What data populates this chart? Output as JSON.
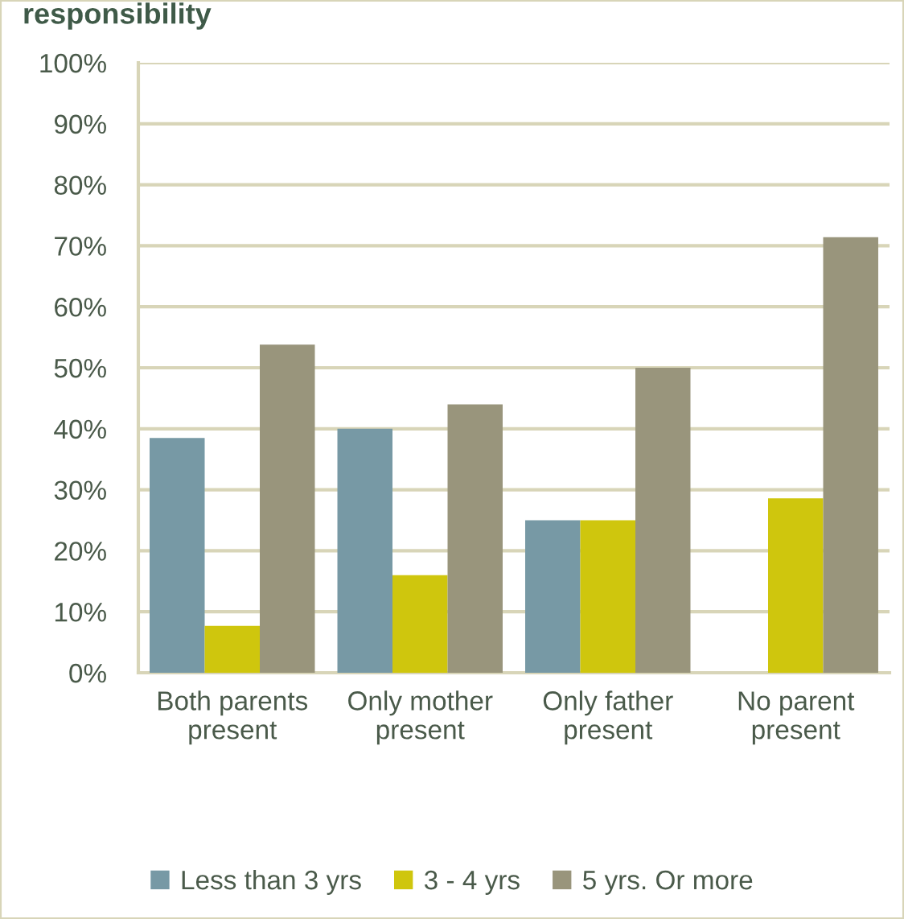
{
  "chart_data": {
    "type": "bar",
    "title": "responsibility",
    "categories": [
      "Both parents present",
      "Only mother present",
      "Only father present",
      "No parent present"
    ],
    "series": [
      {
        "name": "Less than 3 yrs",
        "color": "#7799a5",
        "values": [
          38.5,
          40,
          25,
          0
        ]
      },
      {
        "name": "3 - 4 yrs",
        "color": "#cfc60d",
        "values": [
          7.7,
          16,
          25,
          28.6
        ]
      },
      {
        "name": "5 yrs. Or more",
        "color": "#99957c",
        "values": [
          53.8,
          44,
          50,
          71.4
        ]
      }
    ],
    "ylim": [
      0,
      100
    ],
    "yticks": [
      {
        "value": 0,
        "label": "0%"
      },
      {
        "value": 10,
        "label": "10%"
      },
      {
        "value": 20,
        "label": "20%"
      },
      {
        "value": 30,
        "label": "30%"
      },
      {
        "value": 40,
        "label": "40%"
      },
      {
        "value": 50,
        "label": "50%"
      },
      {
        "value": 60,
        "label": "60%"
      },
      {
        "value": 70,
        "label": "70%"
      },
      {
        "value": 80,
        "label": "80%"
      },
      {
        "value": 90,
        "label": "90%"
      },
      {
        "value": 100,
        "label": "100%"
      }
    ],
    "grid": "y",
    "legend": "bottom"
  }
}
